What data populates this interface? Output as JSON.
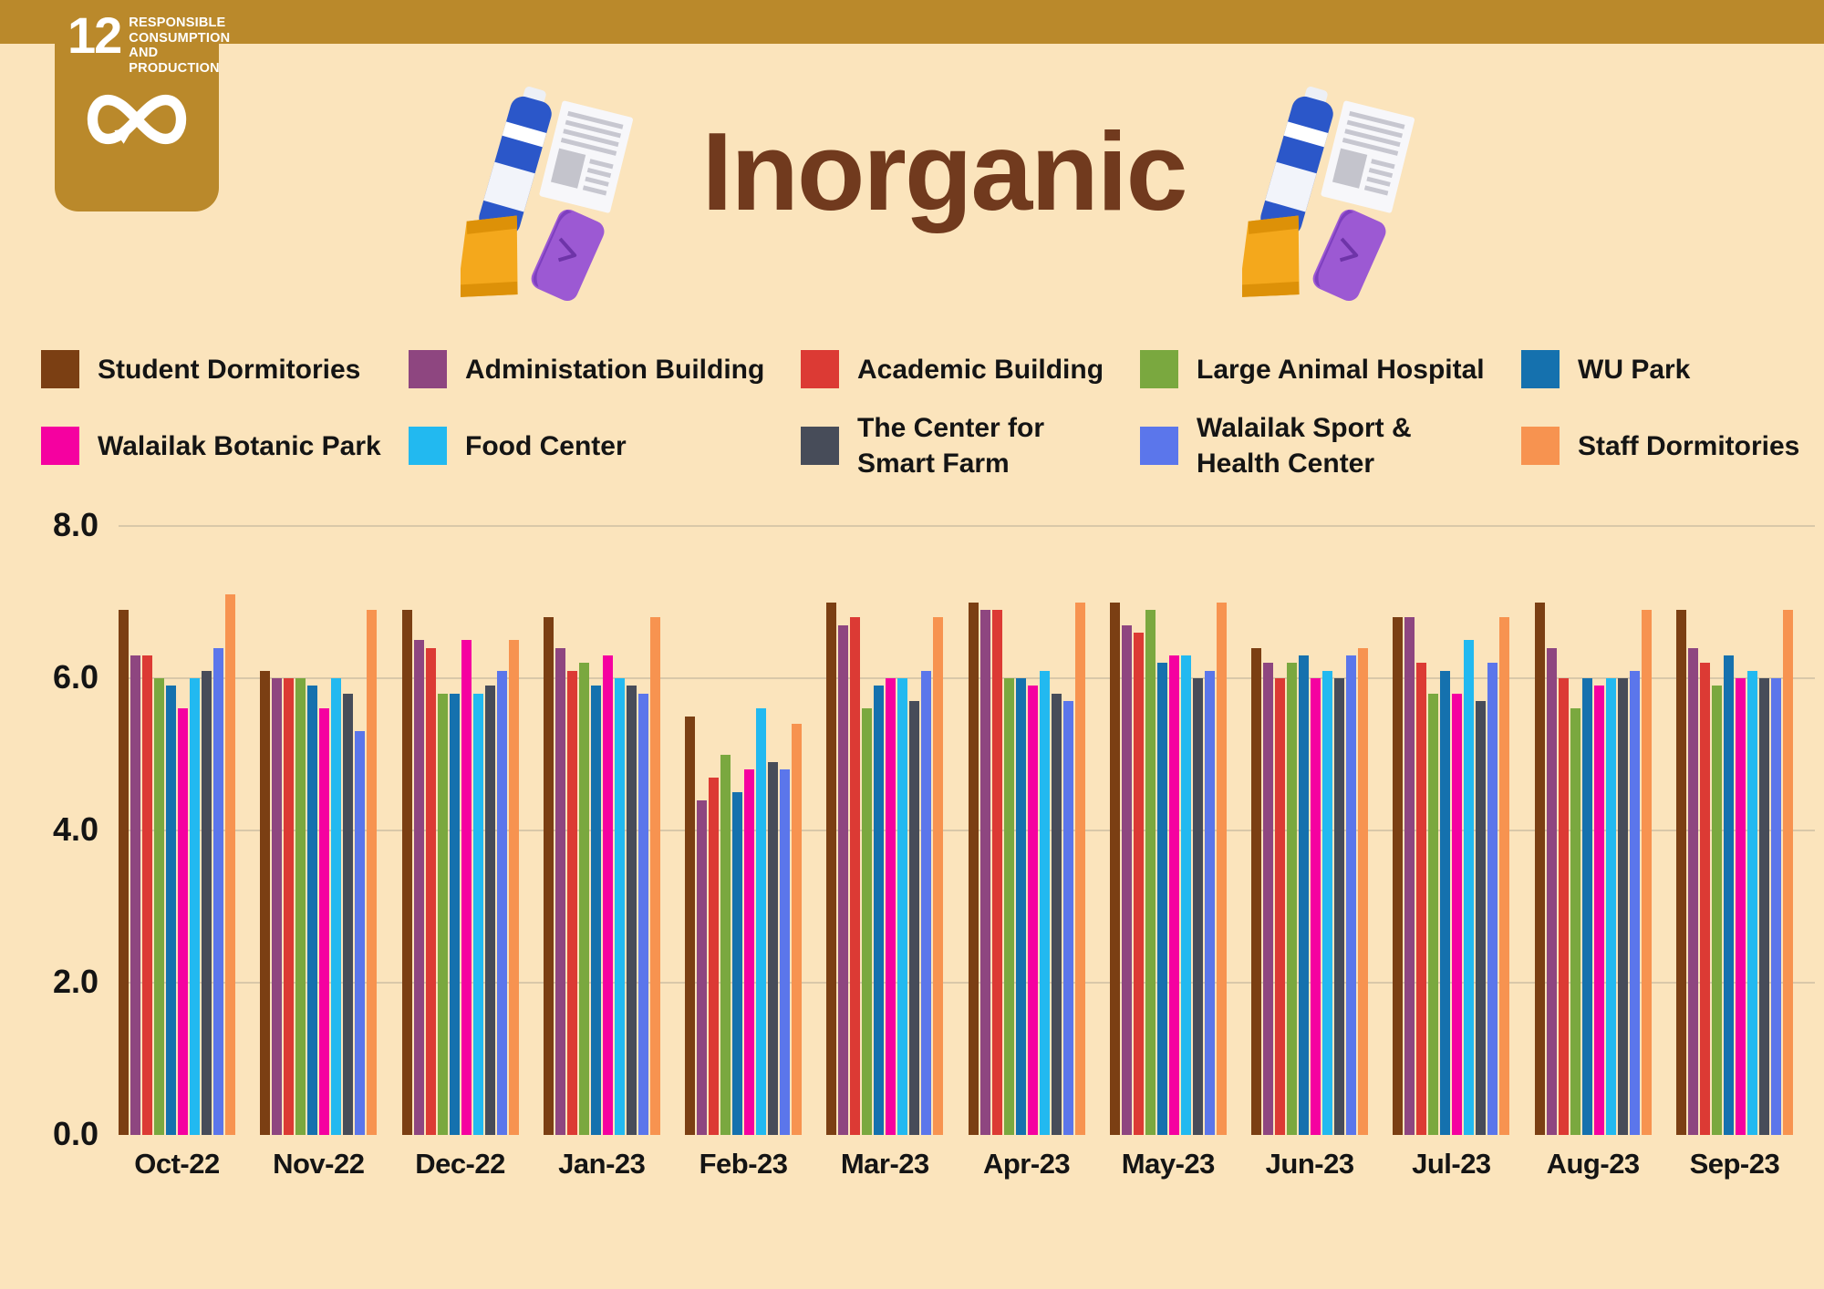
{
  "sdg_badge": {
    "number": "12",
    "label": "RESPONSIBLE CONSUMPTION AND PRODUCTION"
  },
  "title": "Inorganic",
  "palette": {
    "background": "#FBE4BC",
    "banner_gold": "#BA892B",
    "title_brown": "#713A1E",
    "gridline": "#D9C8A9",
    "axis_text": "#141414"
  },
  "icons": [
    "bottle-icon",
    "newspaper-icon",
    "snack-bag-icon",
    "wrapper-icon",
    "infinity-icon"
  ],
  "chart_data": {
    "type": "bar",
    "title": "Inorganic",
    "categories": [
      "Oct-22",
      "Nov-22",
      "Dec-22",
      "Jan-23",
      "Feb-23",
      "Mar-23",
      "Apr-23",
      "May-23",
      "Jun-23",
      "Jul-23",
      "Aug-23",
      "Sep-23"
    ],
    "series": [
      {
        "name": "Student Dormitories",
        "color": "#7B3F13",
        "values": [
          6.9,
          6.1,
          6.9,
          6.8,
          5.5,
          7.0,
          7.0,
          7.0,
          6.4,
          6.8,
          7.0,
          6.9
        ]
      },
      {
        "name": "Administation Building",
        "color": "#8E4680",
        "values": [
          6.3,
          6.0,
          6.5,
          6.4,
          4.4,
          6.7,
          6.9,
          6.7,
          6.2,
          6.8,
          6.4,
          6.4
        ]
      },
      {
        "name": "Academic Building",
        "color": "#DC3A34",
        "values": [
          6.3,
          6.0,
          6.4,
          6.1,
          4.7,
          6.8,
          6.9,
          6.6,
          6.0,
          6.2,
          6.0,
          6.2
        ]
      },
      {
        "name": "Large Animal Hospital",
        "color": "#7AA83F",
        "values": [
          6.0,
          6.0,
          5.8,
          6.2,
          5.0,
          5.6,
          6.0,
          6.9,
          6.2,
          5.8,
          5.6,
          5.9
        ]
      },
      {
        "name": "WU Park",
        "color": "#1571AE",
        "values": [
          5.9,
          5.9,
          5.8,
          5.9,
          4.5,
          5.9,
          6.0,
          6.2,
          6.3,
          6.1,
          6.0,
          6.3
        ]
      },
      {
        "name": "Walailak Botanic Park",
        "color": "#F501A0",
        "name_lines": [
          "Walailak Botanic Park"
        ],
        "values": [
          5.6,
          5.6,
          6.5,
          6.3,
          4.8,
          6.0,
          5.9,
          6.3,
          6.0,
          5.8,
          5.9,
          6.0
        ]
      },
      {
        "name": "Food Center",
        "color": "#22B9F0",
        "values": [
          6.0,
          6.0,
          5.8,
          6.0,
          5.6,
          6.0,
          6.1,
          6.3,
          6.1,
          6.5,
          6.0,
          6.1
        ]
      },
      {
        "name": "The Center for Smart Farm",
        "color": "#474C59",
        "name_lines": [
          "The Center for",
          "Smart Farm"
        ],
        "values": [
          6.1,
          5.8,
          5.9,
          5.9,
          4.9,
          5.7,
          5.8,
          6.0,
          6.0,
          5.7,
          6.0,
          6.0
        ]
      },
      {
        "name": "Walailak Sport & Health Center",
        "color": "#5B76EB",
        "name_lines": [
          "Walailak Sport &",
          "Health Center"
        ],
        "values": [
          6.4,
          5.3,
          6.1,
          5.8,
          4.8,
          6.1,
          5.7,
          6.1,
          6.3,
          6.2,
          6.1,
          6.0
        ]
      },
      {
        "name": "Staff Dormitories",
        "color": "#F79350",
        "values": [
          7.1,
          6.9,
          6.5,
          6.8,
          5.4,
          6.8,
          7.0,
          7.0,
          6.4,
          6.8,
          6.9,
          6.9
        ]
      }
    ],
    "xlabel": "",
    "ylabel": "",
    "ylim": [
      0,
      8
    ],
    "yticks": [
      8,
      6,
      4,
      2,
      0
    ],
    "ytick_labels": [
      "8.0",
      "6.0",
      "4.0",
      "2.0",
      "0.0"
    ],
    "grid": true,
    "legend_position": "top",
    "legend_rows": [
      5,
      5
    ]
  }
}
